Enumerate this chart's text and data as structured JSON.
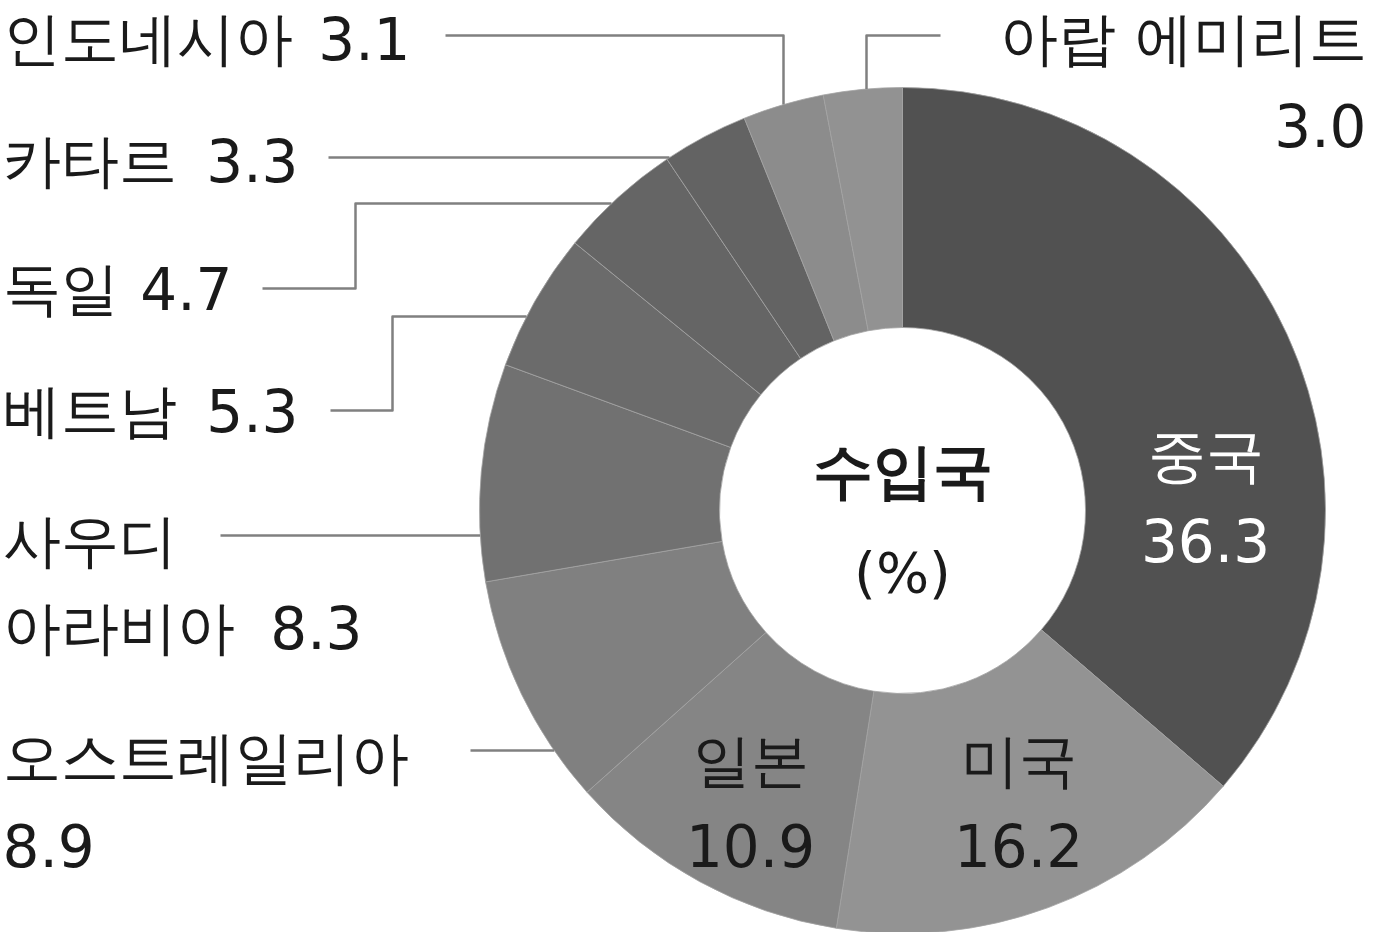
{
  "chart_data": {
    "type": "donut",
    "title": "수입국",
    "subtitle": "(%)",
    "categories": [
      "중국",
      "미국",
      "일본",
      "오스트레일리아",
      "사우디 아라비아",
      "베트남",
      "독일",
      "카타르",
      "인도네시아",
      "아랍 에미리트"
    ],
    "values": [
      36.3,
      16.2,
      10.9,
      8.9,
      8.3,
      5.3,
      4.7,
      3.3,
      3.1,
      3.0
    ],
    "value_labels": [
      "36.3",
      "16.2",
      "10.9",
      "8.9",
      "8.3",
      "5.3",
      "4.7",
      "3.3",
      "3.1",
      "3.0"
    ],
    "colors": [
      "#515151",
      "#939393",
      "#858585",
      "#808080",
      "#717171",
      "#6b6b6b",
      "#656565",
      "#636363",
      "#8c8c8c",
      "#929292"
    ]
  }
}
